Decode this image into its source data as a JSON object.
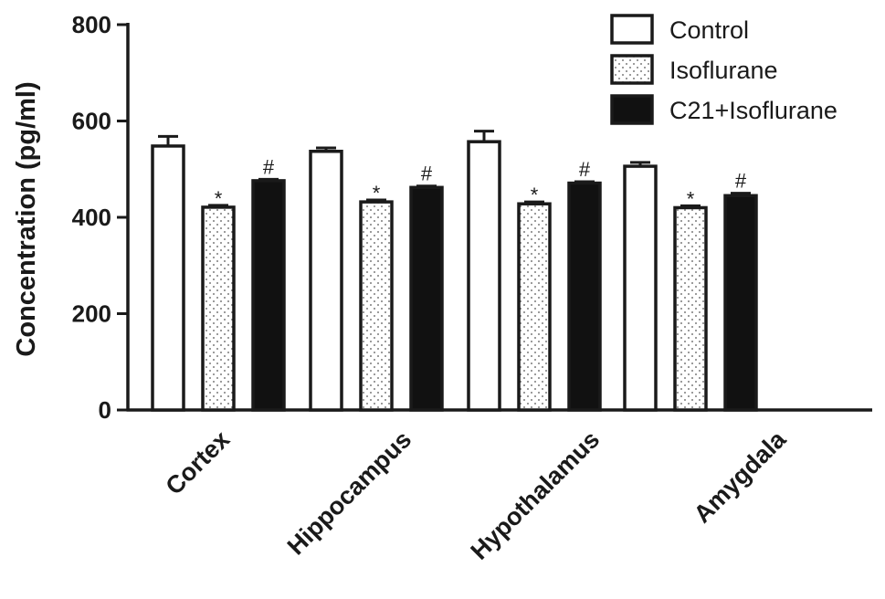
{
  "chart_data": {
    "type": "bar",
    "title": "",
    "xlabel": "",
    "ylabel": "Concentration (pg/ml)",
    "ylim": [
      0,
      800
    ],
    "yticks": [
      0,
      200,
      400,
      600,
      800
    ],
    "categories": [
      "Cortex",
      "Hippocampus",
      "Hypothalamus",
      "Amygdala"
    ],
    "series": [
      {
        "name": "Control",
        "pattern": "white",
        "values": [
          548,
          537,
          557,
          506
        ],
        "errors": [
          20,
          7,
          22,
          8
        ],
        "markers": [
          "",
          "",
          "",
          ""
        ]
      },
      {
        "name": "Isoflurane",
        "pattern": "dotted",
        "values": [
          421,
          432,
          428,
          420
        ],
        "errors": [
          4,
          4,
          4,
          4
        ],
        "markers": [
          "*",
          "*",
          "*",
          "*"
        ]
      },
      {
        "name": "C21+Isoflurane",
        "pattern": "black",
        "values": [
          476,
          462,
          471,
          445
        ],
        "errors": [
          3,
          3,
          3,
          5
        ],
        "markers": [
          "#",
          "#",
          "#",
          "#"
        ]
      }
    ],
    "legend_position": "top-right",
    "grid": false,
    "colors": {
      "ink": "#1a1a1a",
      "fill_white": "#ffffff",
      "fill_black": "#111111",
      "dot": "#555555"
    }
  }
}
